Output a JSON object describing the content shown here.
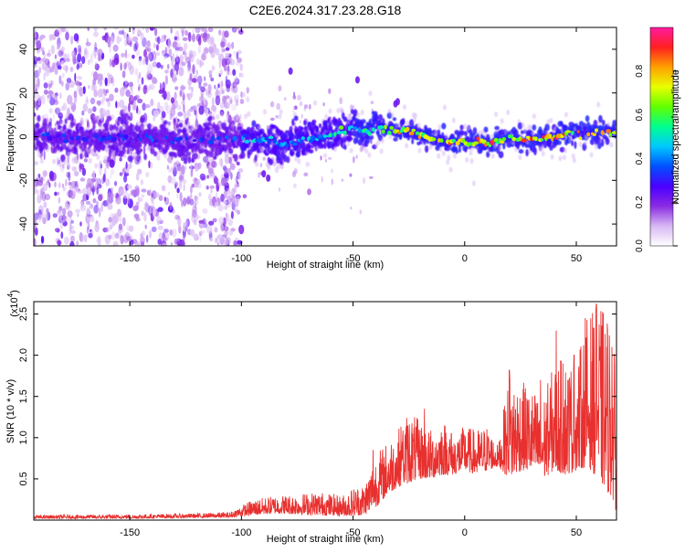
{
  "title": "C2E6.2024.317.23.28.G18",
  "colors": {
    "snr_line": "#e8312f",
    "frame": "#000000"
  },
  "chart_data": [
    {
      "type": "heatmap",
      "xlabel": "Height of straight line (km)",
      "ylabel": "Frequency (Hz)",
      "xlim": [
        -193,
        68
      ],
      "ylim": [
        -50,
        50
      ],
      "x_ticks": [
        -150,
        -100,
        -50,
        0,
        50
      ],
      "y_ticks": [
        -40,
        -20,
        0,
        20,
        40
      ],
      "colorbar": {
        "label": "Normalized spectral amplitude",
        "range": [
          0,
          1
        ],
        "ticks": [
          "0.0",
          "0.2",
          "0.4",
          "0.6",
          "0.8"
        ],
        "tick_values": [
          0,
          0.2,
          0.4,
          0.6,
          0.8
        ],
        "colormap": [
          "#ffffff",
          "#d8b8f4",
          "#8a2be2",
          "#4b00ff",
          "#0050ff",
          "#00c8ff",
          "#00ff90",
          "#60ff00",
          "#e8ff00",
          "#ffa000",
          "#ff2020",
          "#ff1aa0"
        ]
      },
      "trace": {
        "x": [
          -193,
          -170,
          -150,
          -130,
          -110,
          -100,
          -90,
          -80,
          -70,
          -60,
          -50,
          -45,
          -40,
          -30,
          -20,
          -10,
          0,
          10,
          20,
          30,
          40,
          50,
          60,
          68
        ],
        "y": [
          1,
          -1,
          0,
          -2,
          -1,
          -1,
          -2,
          -3,
          -1,
          1,
          4,
          2,
          4,
          3,
          1,
          -2,
          -2,
          -3,
          -1,
          -1,
          0,
          1,
          2,
          3
        ]
      }
    },
    {
      "type": "line",
      "xlabel": "Height of straight line (km)",
      "ylabel": "SNR (10 * v/v)",
      "y_scale_label": "(x10",
      "y_scale_exp": "4",
      "xlim": [
        -193,
        68
      ],
      "ylim": [
        0,
        2.65
      ],
      "x_ticks": [
        -150,
        -100,
        -50,
        0,
        50
      ],
      "y_ticks": [
        0.5,
        1.0,
        1.5,
        2.0,
        2.5
      ],
      "y_tick_labels": [
        "0.5",
        "1.0",
        "1.5",
        "2.0",
        "2.5"
      ],
      "series": [
        {
          "envelope_x": [
            -193,
            -150,
            -120,
            -105,
            -100,
            -95,
            -85,
            -75,
            -65,
            -55,
            -50,
            -45,
            -40,
            -35,
            -30,
            -25,
            -20,
            -15,
            -10,
            -5,
            0,
            5,
            10,
            15,
            20,
            25,
            30,
            35,
            40,
            45,
            50,
            55,
            60,
            65,
            68
          ],
          "envelope_lo": [
            0.02,
            0.02,
            0.03,
            0.03,
            0.05,
            0.06,
            0.08,
            0.07,
            0.06,
            0.05,
            0.05,
            0.06,
            0.15,
            0.3,
            0.4,
            0.45,
            0.5,
            0.5,
            0.55,
            0.55,
            0.6,
            0.55,
            0.6,
            0.65,
            0.5,
            0.6,
            0.6,
            0.5,
            0.6,
            0.55,
            0.6,
            0.65,
            0.5,
            0.3,
            0.1
          ],
          "envelope_hi": [
            0.06,
            0.07,
            0.08,
            0.1,
            0.18,
            0.25,
            0.3,
            0.32,
            0.35,
            0.3,
            0.4,
            0.45,
            0.8,
            0.95,
            1.1,
            1.35,
            1.2,
            1.1,
            1.25,
            1.05,
            1.15,
            1.1,
            1.15,
            0.9,
            1.8,
            1.7,
            1.6,
            1.5,
            1.9,
            2.0,
            1.9,
            2.5,
            2.6,
            2.5,
            1.8
          ],
          "spikes": [
            {
              "x": -41,
              "y": 0.85
            },
            {
              "x": -28,
              "y": 0.95
            },
            {
              "x": -18,
              "y": 1.35
            },
            {
              "x": -6,
              "y": 1.05
            },
            {
              "x": 20,
              "y": 1.82
            },
            {
              "x": 27,
              "y": 1.55
            },
            {
              "x": 34,
              "y": 1.7
            },
            {
              "x": 41,
              "y": 2.3
            },
            {
              "x": 44,
              "y": 1.9
            },
            {
              "x": 49,
              "y": 2.0
            },
            {
              "x": 54,
              "y": 2.45
            },
            {
              "x": 59,
              "y": 2.62
            },
            {
              "x": 62,
              "y": 2.5
            },
            {
              "x": 66,
              "y": 2.1
            }
          ]
        }
      ]
    }
  ]
}
